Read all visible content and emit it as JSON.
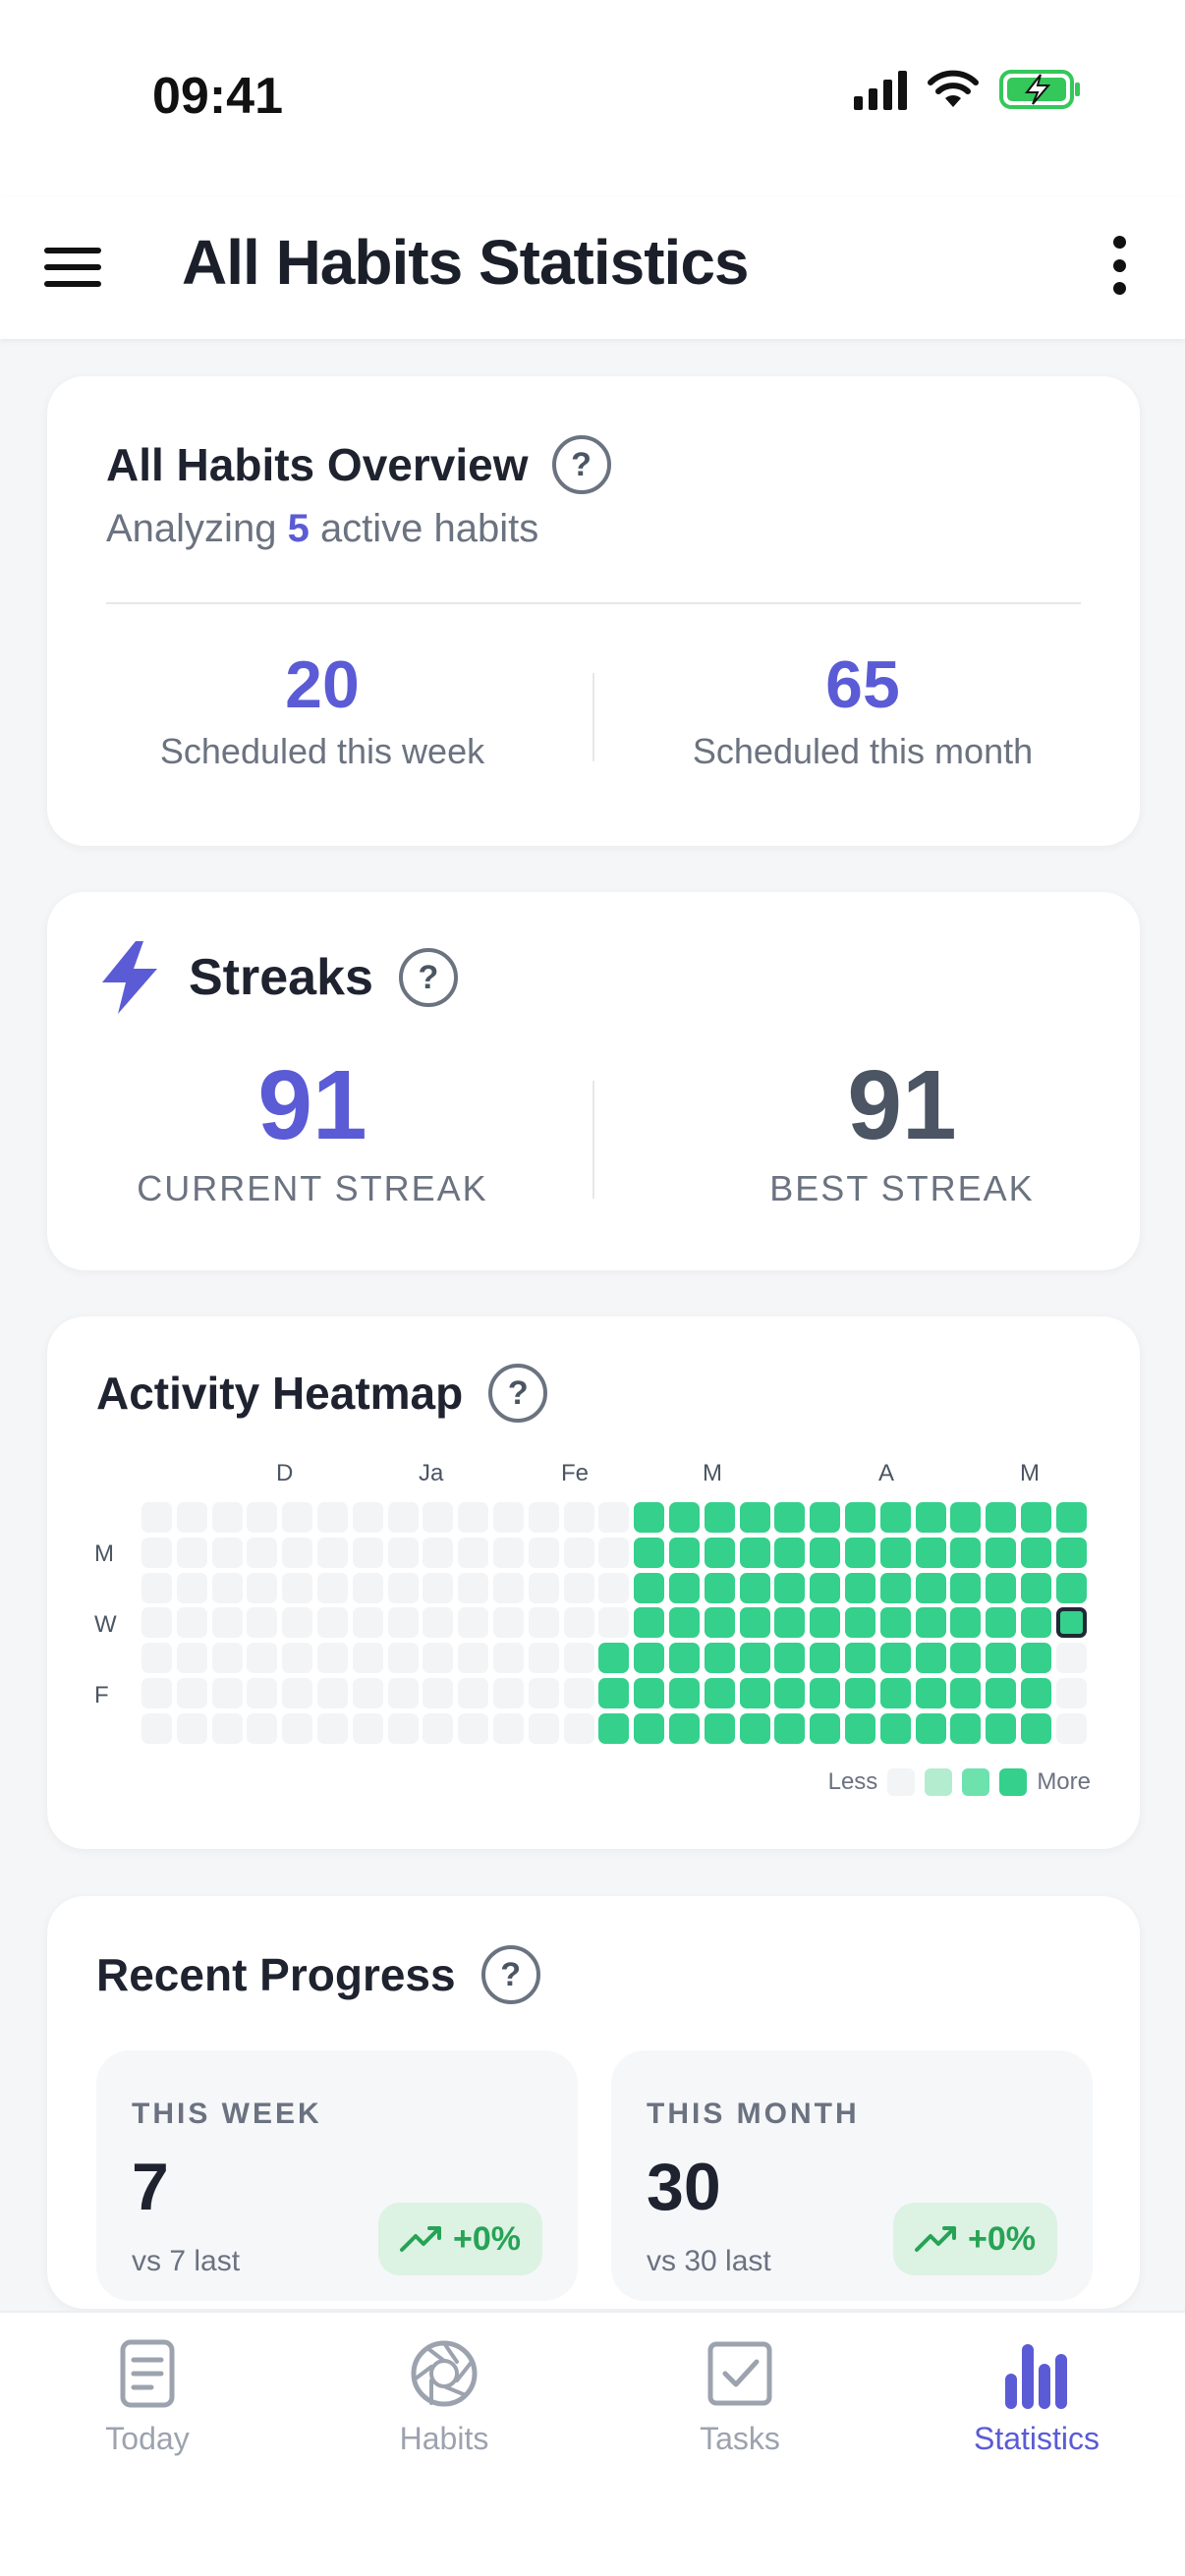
{
  "status_bar": {
    "time": "09:41"
  },
  "header": {
    "title": "All Habits Statistics"
  },
  "overview": {
    "title": "All Habits Overview",
    "subtitle_prefix": "Analyzing",
    "active_count": "5",
    "subtitle_suffix": "active habits",
    "week_value": "20",
    "week_label": "Scheduled this week",
    "month_value": "65",
    "month_label": "Scheduled this month"
  },
  "streaks": {
    "title": "Streaks",
    "current_value": "91",
    "current_label": "CURRENT STREAK",
    "best_value": "91",
    "best_label": "BEST STREAK"
  },
  "heatmap": {
    "title": "Activity Heatmap",
    "months": [
      "D",
      "Ja",
      "Fe",
      "M",
      "A",
      "M"
    ],
    "days": [
      "M",
      "W",
      "F"
    ],
    "legend_less": "Less",
    "legend_more": "More",
    "colors": {
      "empty": "#f3f4f6",
      "active": "#34d08c",
      "today_border": "#1f2937",
      "l1": "#b3eccf",
      "l2": "#6ee2ad",
      "l3": "#34d08c"
    },
    "weeks": 27,
    "empty_weeks": 13
  },
  "recent_progress": {
    "title": "Recent Progress",
    "week": {
      "label": "THIS WEEK",
      "value": "7",
      "vs": "vs 7 last",
      "change": "+0%"
    },
    "month": {
      "label": "THIS MONTH",
      "value": "30",
      "vs": "vs 30 last",
      "change": "+0%"
    }
  },
  "tabs": [
    {
      "label": "Today",
      "icon": "document-icon",
      "active": false
    },
    {
      "label": "Habits",
      "icon": "aperture-icon",
      "active": false
    },
    {
      "label": "Tasks",
      "icon": "checkbox-icon",
      "active": false
    },
    {
      "label": "Statistics",
      "icon": "bar-chart-icon",
      "active": true
    }
  ],
  "accent_color": "#5b5bd6"
}
